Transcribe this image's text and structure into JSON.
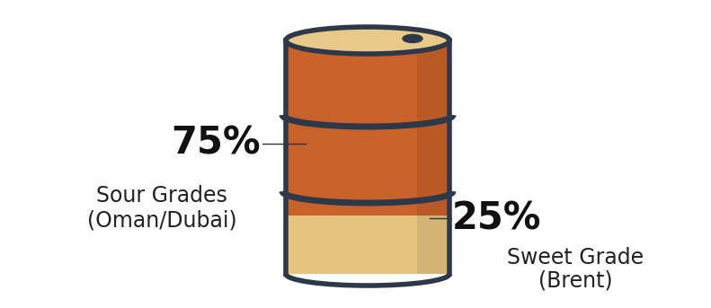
{
  "chart_data": {
    "type": "barrel",
    "categories": [
      "Sour Grades\n(Oman/Dubai)",
      "Sweet Grade\n(Brent)"
    ],
    "values": [
      75,
      25
    ],
    "value_labels": [
      "75%",
      "25%"
    ],
    "colors": [
      "#c8612a",
      "#e6c47f"
    ],
    "data_labels": true,
    "tick_labels": false
  }
}
